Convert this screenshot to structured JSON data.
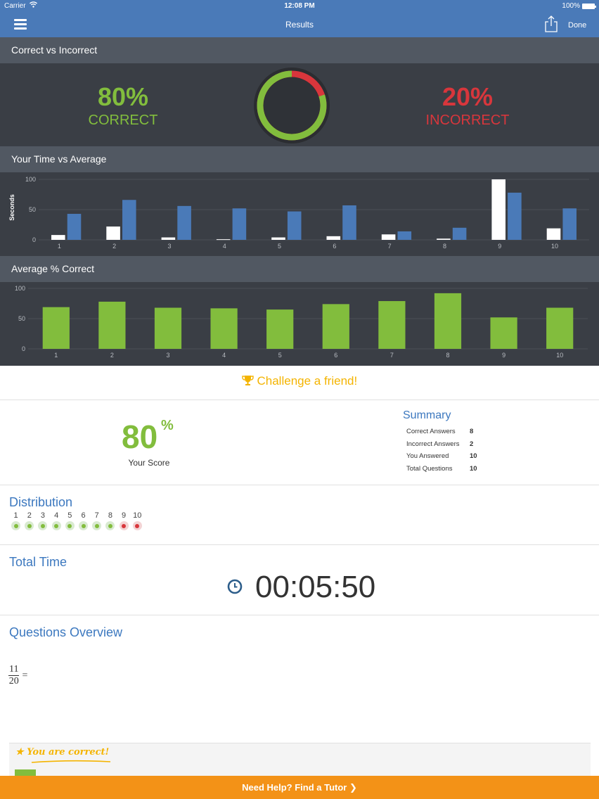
{
  "status_bar": {
    "carrier": "Carrier",
    "time": "12:08 PM",
    "battery": "100%"
  },
  "nav": {
    "title": "Results",
    "done_label": "Done"
  },
  "sections": {
    "correct_vs_incorrect": "Correct vs Incorrect",
    "time_vs_average": "Your Time vs Average",
    "average_correct": "Average % Correct"
  },
  "result": {
    "correct_pct": "80%",
    "correct_label": "CORRECT",
    "incorrect_pct": "20%",
    "incorrect_label": "INCORRECT",
    "correct_fraction": 0.8
  },
  "colors": {
    "green": "#82bd3d",
    "red": "#d8363c",
    "blue": "#4a7ab8",
    "accent_blue": "#3c78bf",
    "orange": "#f39217",
    "gold": "#f4b400"
  },
  "chart_data": [
    {
      "type": "bar",
      "categories": [
        "1",
        "2",
        "3",
        "4",
        "5",
        "6",
        "7",
        "8",
        "9",
        "10"
      ],
      "series": [
        {
          "values": [
            8,
            22,
            4,
            1,
            4,
            6,
            9,
            2,
            100,
            19
          ],
          "color": "#ffffff"
        },
        {
          "values": [
            43,
            66,
            56,
            52,
            47,
            57,
            14,
            20,
            78,
            52
          ],
          "color": "#4a7ab8"
        }
      ],
      "ylabel": "Seconds",
      "yticks": [
        "0",
        "50",
        "100"
      ],
      "ylim": [
        0,
        100
      ]
    },
    {
      "type": "bar",
      "categories": [
        "1",
        "2",
        "3",
        "4",
        "5",
        "6",
        "7",
        "8",
        "9",
        "10"
      ],
      "series": [
        {
          "values": [
            69,
            78,
            68,
            67,
            65,
            74,
            79,
            92,
            52,
            68
          ],
          "color": "#82bd3d"
        }
      ],
      "yticks": [
        "0",
        "50",
        "100"
      ],
      "ylim": [
        0,
        100
      ]
    }
  ],
  "challenge": {
    "label": "Challenge a friend!"
  },
  "score": {
    "value": "80",
    "unit": "%",
    "label": "Your Score"
  },
  "summary": {
    "title": "Summary",
    "rows": [
      {
        "label": "Correct Answers",
        "value": "8"
      },
      {
        "label": "Incorrect Answers",
        "value": "2"
      },
      {
        "label": "You Answered",
        "value": "10"
      },
      {
        "label": "Total Questions",
        "value": "10"
      }
    ]
  },
  "distribution": {
    "title": "Distribution",
    "items": [
      {
        "n": "1",
        "correct": true
      },
      {
        "n": "2",
        "correct": true
      },
      {
        "n": "3",
        "correct": true
      },
      {
        "n": "4",
        "correct": true
      },
      {
        "n": "5",
        "correct": true
      },
      {
        "n": "6",
        "correct": true
      },
      {
        "n": "7",
        "correct": true
      },
      {
        "n": "8",
        "correct": true
      },
      {
        "n": "9",
        "correct": false
      },
      {
        "n": "10",
        "correct": false
      }
    ]
  },
  "total_time": {
    "title": "Total Time",
    "value": "00:05:50"
  },
  "questions_overview": {
    "title": "Questions Overview",
    "numerator": "11",
    "denominator": "20",
    "equals": "="
  },
  "feedback": {
    "text": "You are correct!"
  },
  "help_bar": {
    "label": "Need Help?  Find a Tutor ❯"
  }
}
